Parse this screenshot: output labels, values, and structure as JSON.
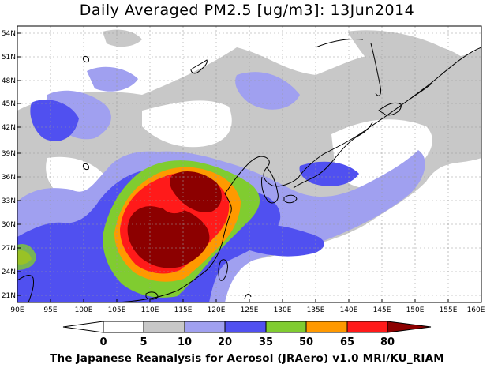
{
  "title": "Daily Averaged PM2.5 [ug/m3]: 13Jun2014",
  "footer": "The Japanese Reanalysis for Aerosol (JRAero) v1.0 MRI/KU_RIAM",
  "lat_labels": [
    "54N",
    "51N",
    "48N",
    "45N",
    "42N",
    "39N",
    "36N",
    "33N",
    "30N",
    "27N",
    "24N",
    "21N"
  ],
  "lon_labels": [
    "90E",
    "95E",
    "100E",
    "105E",
    "110E",
    "115E",
    "120E",
    "125E",
    "130E",
    "135E",
    "140E",
    "145E",
    "150E",
    "155E",
    "160E"
  ],
  "colorbar": {
    "levels": [
      "0",
      "5",
      "10",
      "20",
      "35",
      "50",
      "65",
      "80"
    ],
    "colors": [
      "#ffffff",
      "#c8c8c8",
      "#a0a0f0",
      "#5050f0",
      "#80cc30",
      "#ff9900",
      "#ff1a1a",
      "#8c0000"
    ]
  },
  "legend_colors": {
    "land_outline": "#000000",
    "background": "#ffffff",
    "grid": "#999999"
  }
}
